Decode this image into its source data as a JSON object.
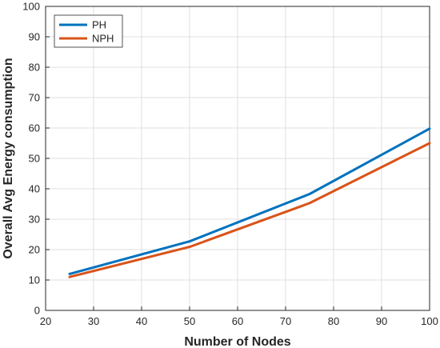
{
  "chart_data": {
    "type": "line",
    "xlabel": "Number of Nodes",
    "ylabel": "Overall Avg Energy consumption",
    "xlim": [
      20,
      100
    ],
    "ylim": [
      0,
      100
    ],
    "xticks": [
      20,
      30,
      40,
      50,
      60,
      70,
      80,
      90,
      100
    ],
    "yticks": [
      0,
      10,
      20,
      30,
      40,
      50,
      60,
      70,
      80,
      90,
      100
    ],
    "grid": true,
    "legend_position": "top-left",
    "series": [
      {
        "name": "PH",
        "color": "#0072BD",
        "x": [
          25,
          50,
          75,
          100
        ],
        "y": [
          12.0,
          22.7,
          38.3,
          59.8
        ]
      },
      {
        "name": "NPH",
        "color": "#D95319",
        "x": [
          25,
          50,
          75,
          100
        ],
        "y": [
          11.0,
          20.9,
          35.3,
          55.0
        ]
      }
    ]
  }
}
